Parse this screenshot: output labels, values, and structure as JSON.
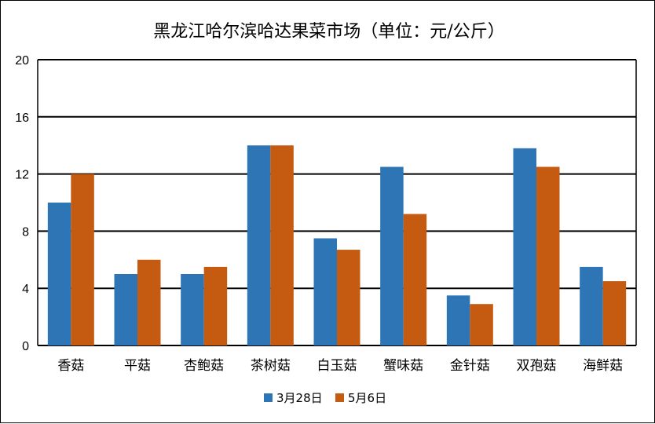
{
  "chart_data": {
    "type": "bar",
    "title": "黑龙江哈尔滨哈达果菜市场（单位：元/公斤）",
    "xlabel": "",
    "ylabel": "",
    "categories": [
      "香菇",
      "平菇",
      "杏鲍菇",
      "茶树菇",
      "白玉菇",
      "蟹味菇",
      "金针菇",
      "双孢菇",
      "海鲜菇"
    ],
    "series": [
      {
        "name": "3月28日",
        "color": "#2e75b6",
        "values": [
          10,
          5,
          5,
          14,
          7.5,
          12.5,
          3.5,
          13.8,
          5.5
        ]
      },
      {
        "name": "5月6日",
        "color": "#c55a11",
        "values": [
          12,
          6,
          5.5,
          14,
          6.7,
          9.2,
          2.9,
          12.5,
          4.5
        ]
      }
    ],
    "ylim": [
      0,
      20
    ],
    "yticks": [
      "0",
      "4",
      "8",
      "12",
      "16",
      "20"
    ],
    "grid": true,
    "legend_position": "bottom"
  }
}
